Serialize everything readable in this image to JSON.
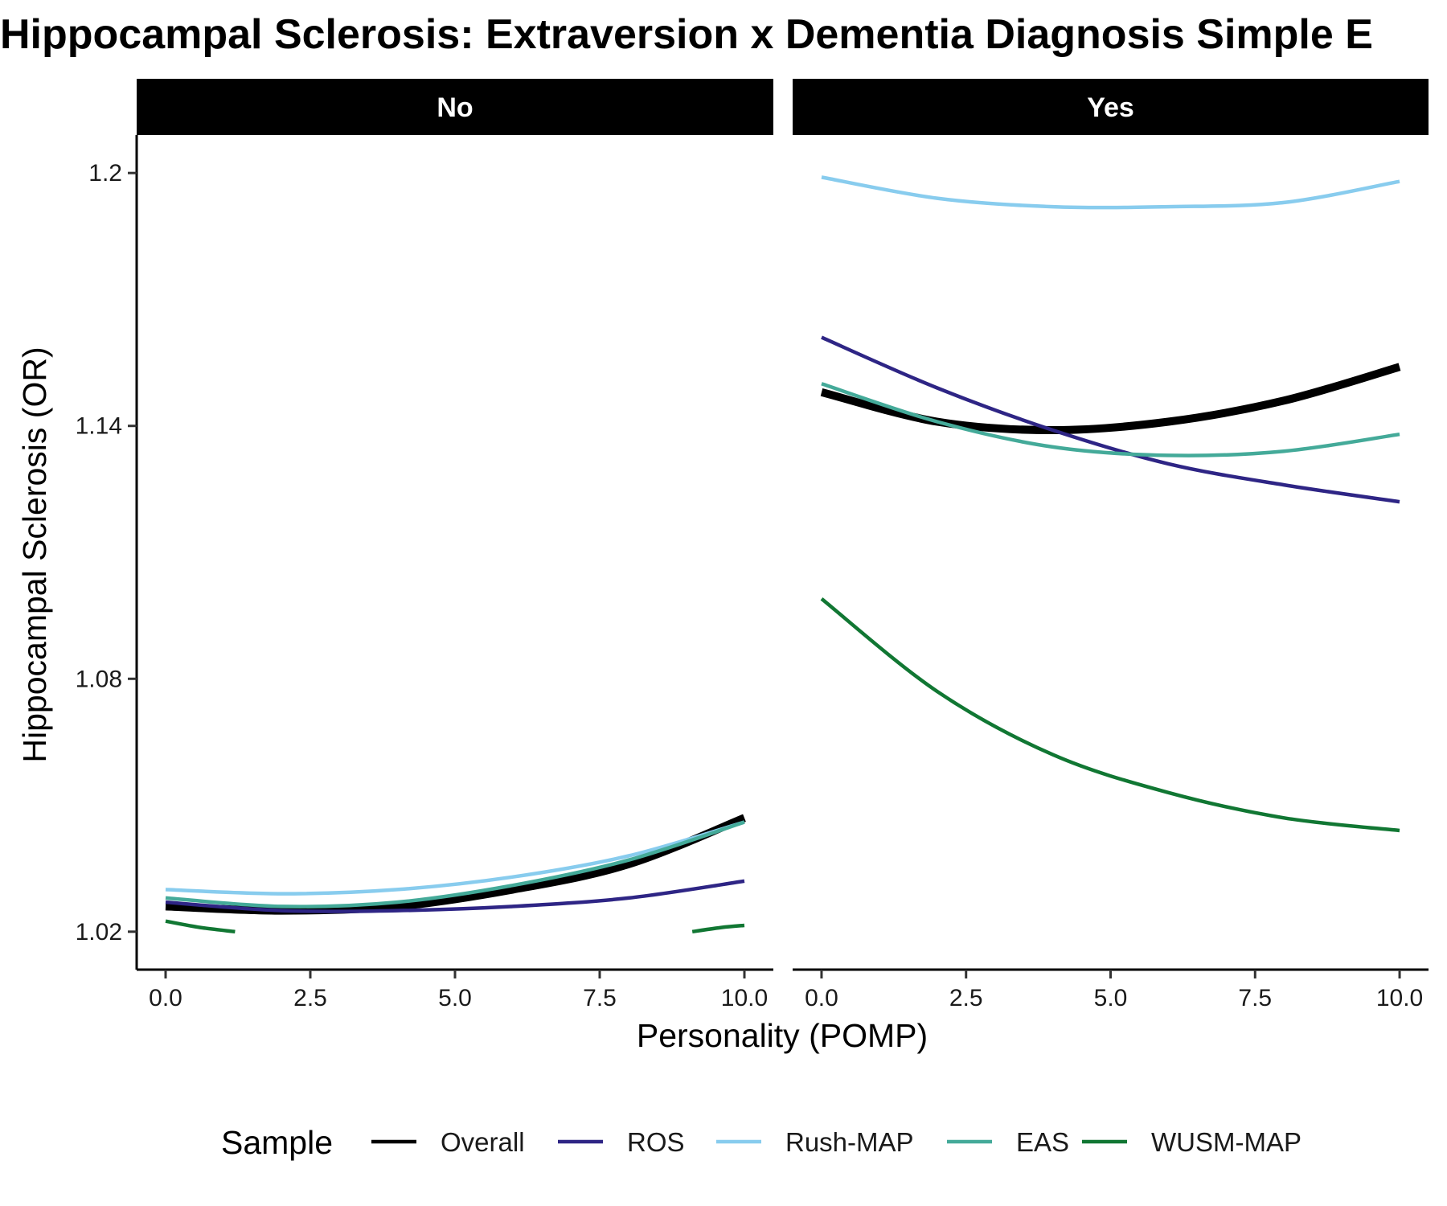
{
  "chart_data": {
    "type": "line",
    "title": "Hippocampal Sclerosis: Extraversion x Dementia Diagnosis Simple E",
    "xlabel": "Personality (POMP)",
    "ylabel": "Hippocampal Sclerosis (OR)",
    "xlim": [
      -0.5,
      10.5
    ],
    "ylim": [
      1.011,
      1.209
    ],
    "x_ticks": [
      0,
      2.5,
      5,
      7.5,
      10
    ],
    "x_tick_labels": [
      "0.0",
      "2.5",
      "5.0",
      "7.5",
      "10.0"
    ],
    "y_ticks": [
      1.02,
      1.08,
      1.14,
      1.2
    ],
    "y_tick_labels": [
      "1.02",
      "1.08",
      "1.14",
      "1.2"
    ],
    "legend": {
      "title": "Sample",
      "position": "bottom",
      "entries": [
        {
          "name": "Overall",
          "color": "#000000"
        },
        {
          "name": "ROS",
          "color": "#2E2585"
        },
        {
          "name": "Rush-MAP",
          "color": "#88CCEE"
        },
        {
          "name": "EAS",
          "color": "#44AA99"
        },
        {
          "name": "WUSM-MAP",
          "color": "#117733"
        }
      ]
    },
    "panels": [
      {
        "label": "No",
        "series": [
          {
            "name": "Overall",
            "x": [
              0,
              2,
              4,
              6,
              8,
              10
            ],
            "values": [
              1.026,
              1.025,
              1.026,
              1.03,
              1.036,
              1.047
            ]
          },
          {
            "name": "ROS",
            "x": [
              0,
              2,
              4,
              6,
              8,
              10
            ],
            "values": [
              1.027,
              1.025,
              1.025,
              1.026,
              1.028,
              1.032
            ]
          },
          {
            "name": "Rush-MAP",
            "x": [
              0,
              2,
              4,
              6,
              8,
              10
            ],
            "values": [
              1.03,
              1.029,
              1.03,
              1.033,
              1.038,
              1.046
            ]
          },
          {
            "name": "EAS",
            "x": [
              0,
              2,
              4,
              6,
              8,
              10
            ],
            "values": [
              1.028,
              1.026,
              1.027,
              1.031,
              1.037,
              1.046
            ]
          },
          {
            "name": "WUSM-MAP",
            "x": [
              0,
              0.6,
              1.2
            ],
            "values": [
              1.0225,
              1.021,
              1.02
            ],
            "segment2": {
              "x": [
                9.1,
                9.6,
                10
              ],
              "values": [
                1.02,
                1.021,
                1.0215
              ]
            }
          }
        ]
      },
      {
        "label": "Yes",
        "series": [
          {
            "name": "Overall",
            "x": [
              0,
              2,
              4,
              6,
              8,
              10
            ],
            "values": [
              1.148,
              1.141,
              1.139,
              1.141,
              1.146,
              1.154
            ]
          },
          {
            "name": "ROS",
            "x": [
              0,
              2,
              4,
              6,
              8,
              10
            ],
            "values": [
              1.161,
              1.149,
              1.139,
              1.131,
              1.126,
              1.122
            ]
          },
          {
            "name": "Rush-MAP",
            "x": [
              0,
              2,
              4,
              6,
              8,
              10
            ],
            "values": [
              1.199,
              1.194,
              1.192,
              1.192,
              1.193,
              1.198
            ]
          },
          {
            "name": "EAS",
            "x": [
              0,
              2,
              4,
              6,
              8,
              10
            ],
            "values": [
              1.15,
              1.141,
              1.135,
              1.133,
              1.134,
              1.138
            ]
          },
          {
            "name": "WUSM-MAP",
            "x": [
              0,
              2,
              4,
              6,
              8,
              10
            ],
            "values": [
              1.099,
              1.077,
              1.062,
              1.053,
              1.047,
              1.044
            ]
          }
        ]
      }
    ]
  }
}
